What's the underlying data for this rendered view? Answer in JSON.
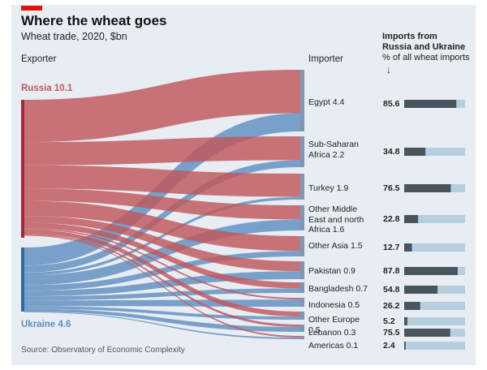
{
  "header": {
    "title": "Where the wheat goes",
    "subtitle": "Wheat trade, 2020, $bn",
    "exporter_head": "Exporter",
    "importer_head": "Importer",
    "imports_head_1": "Imports from",
    "imports_head_2": "Russia and Ukraine",
    "imports_head_3": "% of all wheat imports",
    "sort_arrow": "↓"
  },
  "source": "Source: Observatory of Economic Complexity",
  "colors": {
    "russia": "#c0575c",
    "ukraine": "#5f8fc0",
    "bar_dark": "#4a545d",
    "bar_light": "#b6cfde",
    "accent": "#e3120b"
  },
  "chart_data": {
    "type": "sankey",
    "title": "Where the wheat goes",
    "subtitle": "Wheat trade, 2020, $bn",
    "exporters": [
      {
        "name": "Russia",
        "value": 10.1,
        "label": "Russia 10.1"
      },
      {
        "name": "Ukraine",
        "value": 4.6,
        "label": "Ukraine 4.6"
      }
    ],
    "importers": [
      {
        "name": "Egypt",
        "label": "Egypt 4.4",
        "value": 4.4,
        "russia": 3.1,
        "ukraine": 1.3,
        "share_pct": 85.6,
        "share_label": "85.6"
      },
      {
        "name": "Sub-Saharan Africa",
        "label": "Sub-Saharan Africa 2.2",
        "value": 2.2,
        "russia": 1.7,
        "ukraine": 0.5,
        "share_pct": 34.8,
        "share_label": "34.8"
      },
      {
        "name": "Turkey",
        "label": "Turkey 1.9",
        "value": 1.9,
        "russia": 1.7,
        "ukraine": 0.2,
        "share_pct": 76.5,
        "share_label": "76.5"
      },
      {
        "name": "Other Middle East and north Africa",
        "label": "Other Middle East and north Africa 1.6",
        "value": 1.6,
        "russia": 0.9,
        "ukraine": 0.7,
        "share_pct": 22.8,
        "share_label": "22.8"
      },
      {
        "name": "Other Asia",
        "label": "Other Asia 1.5",
        "value": 1.5,
        "russia": 1.1,
        "ukraine": 0.4,
        "share_pct": 12.7,
        "share_label": "12.7"
      },
      {
        "name": "Pakistan",
        "label": "Pakistan 0.9",
        "value": 0.9,
        "russia": 0.5,
        "ukraine": 0.4,
        "share_pct": 87.8,
        "share_label": "87.8"
      },
      {
        "name": "Bangladesh",
        "label": "Bangladesh 0.7",
        "value": 0.7,
        "russia": 0.4,
        "ukraine": 0.3,
        "share_pct": 54.8,
        "share_label": "54.8"
      },
      {
        "name": "Indonesia",
        "label": "Indonesia 0.5",
        "value": 0.5,
        "russia": 0.1,
        "ukraine": 0.4,
        "share_pct": 26.2,
        "share_label": "26.2"
      },
      {
        "name": "Other Europe",
        "label": "Other Europe 0.5",
        "value": 0.5,
        "russia": 0.3,
        "ukraine": 0.2,
        "share_pct": 5.2,
        "share_label": "5.2"
      },
      {
        "name": "Lebanon",
        "label": "Lebanon 0.3",
        "value": 0.3,
        "russia": 0.1,
        "ukraine": 0.2,
        "share_pct": 75.5,
        "share_label": "75.5"
      },
      {
        "name": "Americas",
        "label": "Americas 0.1",
        "value": 0.1,
        "russia": 0.05,
        "ukraine": 0.05,
        "share_pct": 2.4,
        "share_label": "2.4"
      }
    ]
  }
}
